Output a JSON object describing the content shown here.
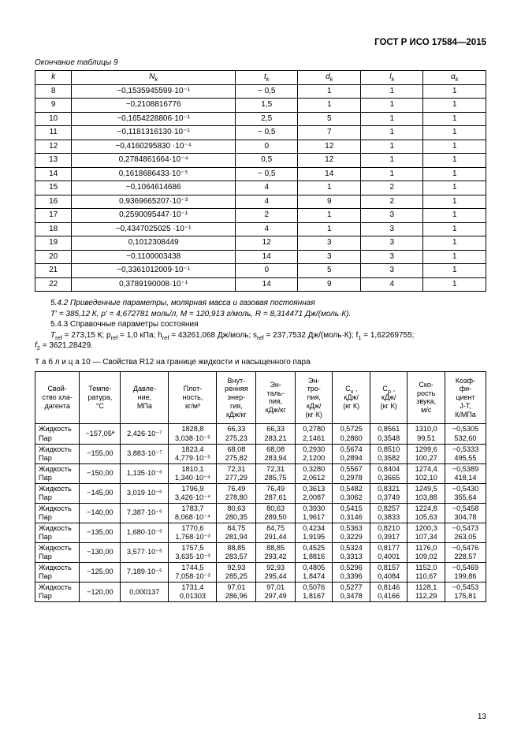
{
  "doc_id": "ГОСТ Р ИСО 17584—2015",
  "caption9": "Окончание таблицы 9",
  "t9": {
    "headers": [
      "k",
      "N_k",
      "t_k",
      "d_k",
      "l_k",
      "α_k"
    ],
    "rows": [
      {
        "k": "8",
        "N": "−0,1535945599·10⁻¹",
        "t": "− 0,5",
        "d": "1",
        "l": "1",
        "a": "1"
      },
      {
        "k": "9",
        "N": "−0,2108816776",
        "t": "1,5",
        "d": "1",
        "l": "1",
        "a": "1"
      },
      {
        "k": "10",
        "N": "−0,1654228806·10⁻¹",
        "t": "2,5",
        "d": "5",
        "l": "1",
        "a": "1"
      },
      {
        "k": "11",
        "N": "−0,1181316130·10⁻¹",
        "t": "− 0,5",
        "d": "7",
        "l": "1",
        "a": "1"
      },
      {
        "k": "12",
        "N": "−0,4160295830 ·10⁻⁴",
        "t": "0",
        "d": "12",
        "l": "1",
        "a": "1"
      },
      {
        "k": "13",
        "N": "0,2784861664·10⁻⁴",
        "t": "0,5",
        "d": "12",
        "l": "1",
        "a": "1"
      },
      {
        "k": "14",
        "N": "0,1618686433·10⁻⁵",
        "t": "− 0,5",
        "d": "14",
        "l": "1",
        "a": "1"
      },
      {
        "k": "15",
        "N": "−0,1064614686",
        "t": "4",
        "d": "1",
        "l": "2",
        "a": "1"
      },
      {
        "k": "16",
        "N": "0,9369665207·10⁻³",
        "t": "4",
        "d": "9",
        "l": "2",
        "a": "1"
      },
      {
        "k": "17",
        "N": "0,2590095447·10⁻¹",
        "t": "2",
        "d": "1",
        "l": "3",
        "a": "1"
      },
      {
        "k": "18",
        "N": "−0,4347025025 ·10⁻¹",
        "t": "4",
        "d": "1",
        "l": "3",
        "a": "1"
      },
      {
        "k": "19",
        "N": "0,1012308449",
        "t": "12",
        "d": "3",
        "l": "3",
        "a": "1"
      },
      {
        "k": "20",
        "N": "−0,1100003438",
        "t": "14",
        "d": "3",
        "l": "3",
        "a": "1"
      },
      {
        "k": "21",
        "N": "−0,3361012009·10⁻¹",
        "t": "0",
        "d": "5",
        "l": "3",
        "a": "1"
      },
      {
        "k": "22",
        "N": "0,3789190008·10⁻¹",
        "t": "14",
        "d": "9",
        "l": "4",
        "a": "1"
      }
    ]
  },
  "para": {
    "p1": "5.4.2 Приведенные параметры, молярная масса и газовая постоянная",
    "p2": "T' = 385,12 К, ρ' = 4,672781 моль/л, M = 120,913 г/моль, R  = 8,314471 Дж/(моль·К).",
    "p3": "5.4.3 Справочные параметры состояния",
    "p4_a": "T",
    "p4_b": " = 273,15 К; p",
    "p4_c": " = 1,0 кПа; h",
    "p4_d": " = 43261,068 Дж/моль; s",
    "p4_e": " = 237,7532 Дж/(моль·К); f",
    "p4_f": " = 1,62269755;",
    "p5_a": "f",
    "p5_b": " = 3621,28429."
  },
  "title10": "Т а б л и ц а  10 — Свойства R12 на границе жидкости и насыщенного пара",
  "t10": {
    "headers": [
      "Свой-\nство хла-\nдагента",
      "Темпе-\nратура,\n°C",
      "Давле-\nние,\nМПа",
      "Плот-\nность,\nкг/м³",
      "Внут-\nренняя\nэнер-\nгия,\nкДж/кг",
      "Эн-\nталь-\nпия,\nкДж/кг",
      "Эн-\nтро-\nпия,\nкДж/\n(кг·К)",
      "C_v ,\nкДж/\n(кг К)",
      "C_p ,\nкДж/\n(кг К)",
      "Ско-\nрость\nзвука,\nм/с",
      "Коэф-\nфи-\nциент\nJ-T,\nК/МПа"
    ],
    "col_w": [
      "44px",
      "46px",
      "54px",
      "54px",
      "44px",
      "44px",
      "42px",
      "42px",
      "42px",
      "42px",
      "46px"
    ],
    "rows": [
      {
        "s1": "Жидкость",
        "s2": "Пар",
        "T": "−157,05ª",
        "P": "2,426·10⁻⁷",
        "rho1": "1828,8",
        "rho2": "3,038·10⁻⁵",
        "u1": "66,33",
        "u2": "275,23",
        "h1": "66,33",
        "h2": "283,21",
        "ent1": "0,2780",
        "ent2": "2,1461",
        "cv1": "0,5725",
        "cv2": "0,2860",
        "cp1": "0,8561",
        "cp2": "0,3548",
        "w1": "1310,0",
        "w2": "99,51",
        "jt1": "−0,5305",
        "jt2": "532,60"
      },
      {
        "s1": "Жидкость",
        "s2": "Пар",
        "T": "−155,00",
        "P": "3,883·10⁻⁷",
        "rho1": "1823,4",
        "rho2": "4,779·10⁻⁵",
        "u1": "68,08",
        "u2": "275,82",
        "h1": "68,08",
        "h2": "283,94",
        "ent1": "0,2930",
        "ent2": "2,1200",
        "cv1": "0,5674",
        "cv2": "0,2894",
        "cp1": "0,8510",
        "cp2": "0,3582",
        "w1": "1299,6",
        "w2": "100,27",
        "jt1": "−0,5333",
        "jt2": "495,55"
      },
      {
        "s1": "Жидкость",
        "s2": "Пар",
        "T": "−150,00",
        "P": "1,135·10⁻⁶",
        "rho1": "1810,1",
        "rho2": "1,340·10⁻⁴",
        "u1": "72,31",
        "u2": "277,29",
        "h1": "72,31",
        "h2": "285,75",
        "ent1": "0,3280",
        "ent2": "2,0612",
        "cv1": "0,5567",
        "cv2": "0,2978",
        "cp1": "0,8404",
        "cp2": "0,3665",
        "w1": "1274,4",
        "w2": "102,10",
        "jt1": "−0,5389",
        "jt2": "418,14"
      },
      {
        "s1": "Жидкость",
        "s2": "Пар",
        "T": "−145,00",
        "P": "3,019·10⁻⁶",
        "rho1": "1796,9",
        "rho2": "3,426·10⁻⁴",
        "u1": "76,49",
        "u2": "278,80",
        "h1": "76,49",
        "h2": "287,61",
        "ent1": "0,3613",
        "ent2": "2,0087",
        "cv1": "0,5482",
        "cv2": "0,3062",
        "cp1": "0,8321",
        "cp2": "0,3749",
        "w1": "1249,5",
        "w2": "103,88",
        "jt1": "−0,5430",
        "jt2": "355,64"
      },
      {
        "s1": "Жидкость",
        "s2": "Пар",
        "T": "−140,00",
        "P": "7,387·10⁻⁶",
        "rho1": "1783,7",
        "rho2": "8,068·10⁻⁴",
        "u1": "80,63",
        "u2": "280,35",
        "h1": "80,63",
        "h2": "289,50",
        "ent1": "0,3930",
        "ent2": "1,9617",
        "cv1": "0,5415",
        "cv2": "0,3146",
        "cp1": "0,8257",
        "cp2": "0,3833",
        "w1": "1224,8",
        "w2": "105,63",
        "jt1": "−0,5458",
        "jt2": "304,78"
      },
      {
        "s1": "Жидкость",
        "s2": "Пар",
        "T": "−135,00",
        "P": "1,680·10⁻⁵",
        "rho1": "1770,6",
        "rho2": "1,768·10⁻³",
        "u1": "84,75",
        "u2": "281,94",
        "h1": "84,75",
        "h2": "291,44",
        "ent1": "0,4234",
        "ent2": "1,9195",
        "cv1": "0,5363",
        "cv2": "0,3229",
        "cp1": "0,8210",
        "cp2": "0,3917",
        "w1": "1200,3",
        "w2": "107,34",
        "jt1": "−0,5473",
        "jt2": "263,05"
      },
      {
        "s1": "Жидкость",
        "s2": "Пар",
        "T": "−130,00",
        "P": "3,577·10⁻⁵",
        "rho1": "1757,5",
        "rho2": "3,635·10⁻³",
        "u1": "88,85",
        "u2": "283,57",
        "h1": "88,85",
        "h2": "293,42",
        "ent1": "0,4525",
        "ent2": "1,8816",
        "cv1": "0,5324",
        "cv2": "0,3313",
        "cp1": "0,8177",
        "cp2": "0,4001",
        "w1": "1176,0",
        "w2": "109,02",
        "jt1": "−0,5476",
        "jt2": "228,57"
      },
      {
        "s1": "Жидкость",
        "s2": "Пар",
        "T": "−125,00",
        "P": "7,189·10⁻⁵",
        "rho1": "1744,5",
        "rho2": "7,058·10⁻³",
        "u1": "92,93",
        "u2": "285,25",
        "h1": "92,93",
        "h2": "295,44",
        "ent1": "0,4805",
        "ent2": "1,8474",
        "cv1": "0,5296",
        "cv2": "0,3396",
        "cp1": "0,8157",
        "cp2": "0,4084",
        "w1": "1152,0",
        "w2": "110,67",
        "jt1": "−0,5469",
        "jt2": "199,86"
      },
      {
        "s1": "Жидкость",
        "s2": "Пар",
        "T": "−120,00",
        "P": "0,000137",
        "rho1": "1731,4",
        "rho2": "0,01303",
        "u1": "97,01",
        "u2": "286,96",
        "h1": "97,01",
        "h2": "297,49",
        "ent1": "0,5076",
        "ent2": "1,8167",
        "cv1": "0,5277",
        "cv2": "0,3478",
        "cp1": "0,8146",
        "cp2": "0,4166",
        "w1": "1128,1",
        "w2": "112,29",
        "jt1": "−0,5453",
        "jt2": "175,81"
      }
    ]
  },
  "page_num": "13"
}
